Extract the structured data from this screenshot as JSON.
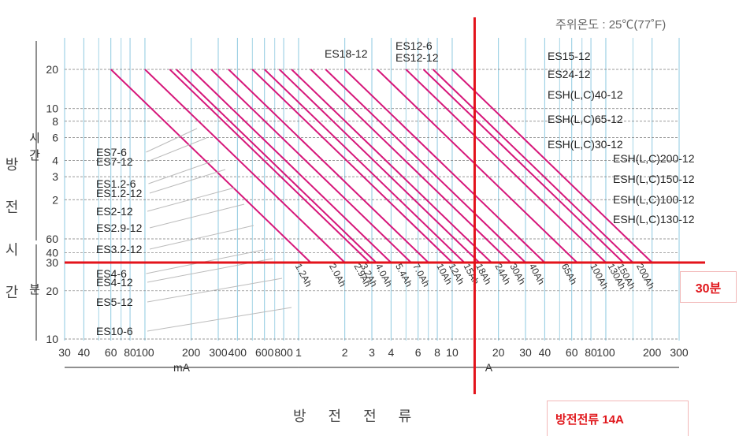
{
  "chart_data": {
    "type": "line",
    "annotation_ambient": "주위온도 : 25℃(77˚F)",
    "ylabel": "방전시간",
    "xlabel": "방전전류",
    "x_scale": "log",
    "x_unit_segments": [
      {
        "label": "mA",
        "from": 30,
        "to": 1000,
        "unit": "mA"
      },
      {
        "label": "A",
        "from": 1,
        "to": 300,
        "unit": "A"
      }
    ],
    "x_ticks_mA": [
      "30",
      "40",
      "60",
      "80",
      "100",
      "200",
      "300",
      "400",
      "600",
      "800"
    ],
    "x_ticks_A": [
      "1",
      "2",
      "3",
      "4",
      "6",
      "8",
      "10",
      "20",
      "30",
      "40",
      "60",
      "80",
      "100",
      "200",
      "300"
    ],
    "y_axis_groups": [
      {
        "label": "시간",
        "unit": "h",
        "ticks": [
          "20",
          "10",
          "8",
          "6",
          "4",
          "3",
          "2"
        ]
      },
      {
        "label": "분",
        "unit": "min",
        "ticks": [
          "60",
          "40",
          "30",
          "20",
          "10"
        ]
      }
    ],
    "grid": true,
    "series": [
      {
        "name": "1.2Ah",
        "points": [
          {
            "x_A": 0.06,
            "t_h": 20
          },
          {
            "x_A": 1.2,
            "t_h": 0.5
          }
        ]
      },
      {
        "name": "2.0Ah",
        "points": [
          {
            "x_A": 0.1,
            "t_h": 20
          },
          {
            "x_A": 2.0,
            "t_h": 0.5
          }
        ]
      },
      {
        "name": "2.9Ah",
        "points": [
          {
            "x_A": 0.145,
            "t_h": 20
          },
          {
            "x_A": 2.9,
            "t_h": 0.5
          }
        ]
      },
      {
        "name": "3.2Ah",
        "points": [
          {
            "x_A": 0.16,
            "t_h": 20
          },
          {
            "x_A": 3.2,
            "t_h": 0.5
          }
        ]
      },
      {
        "name": "4.0Ah",
        "points": [
          {
            "x_A": 0.2,
            "t_h": 20
          },
          {
            "x_A": 4.0,
            "t_h": 0.5
          }
        ]
      },
      {
        "name": "5.4Ah",
        "points": [
          {
            "x_A": 0.27,
            "t_h": 20
          },
          {
            "x_A": 5.4,
            "t_h": 0.5
          }
        ]
      },
      {
        "name": "7.0Ah",
        "points": [
          {
            "x_A": 0.35,
            "t_h": 20
          },
          {
            "x_A": 7.0,
            "t_h": 0.5
          }
        ]
      },
      {
        "name": "10Ah",
        "points": [
          {
            "x_A": 0.5,
            "t_h": 20
          },
          {
            "x_A": 10,
            "t_h": 0.5
          }
        ]
      },
      {
        "name": "12Ah",
        "points": [
          {
            "x_A": 0.6,
            "t_h": 20
          },
          {
            "x_A": 12,
            "t_h": 0.5
          }
        ]
      },
      {
        "name": "15Ah",
        "points": [
          {
            "x_A": 0.75,
            "t_h": 20
          },
          {
            "x_A": 15,
            "t_h": 0.5
          }
        ]
      },
      {
        "name": "18Ah",
        "points": [
          {
            "x_A": 0.9,
            "t_h": 20
          },
          {
            "x_A": 18,
            "t_h": 0.5
          }
        ]
      },
      {
        "name": "24Ah",
        "points": [
          {
            "x_A": 1.2,
            "t_h": 20
          },
          {
            "x_A": 24,
            "t_h": 0.5
          }
        ]
      },
      {
        "name": "30Ah",
        "points": [
          {
            "x_A": 1.5,
            "t_h": 20
          },
          {
            "x_A": 30,
            "t_h": 0.5
          }
        ]
      },
      {
        "name": "40Ah",
        "points": [
          {
            "x_A": 2.0,
            "t_h": 20
          },
          {
            "x_A": 40,
            "t_h": 0.5
          }
        ]
      },
      {
        "name": "65Ah",
        "points": [
          {
            "x_A": 3.25,
            "t_h": 20
          },
          {
            "x_A": 65,
            "t_h": 0.5
          }
        ]
      },
      {
        "name": "100Ah",
        "points": [
          {
            "x_A": 5,
            "t_h": 20
          },
          {
            "x_A": 100,
            "t_h": 0.5
          }
        ]
      },
      {
        "name": "130Ah",
        "points": [
          {
            "x_A": 6.5,
            "t_h": 20
          },
          {
            "x_A": 130,
            "t_h": 0.5
          }
        ]
      },
      {
        "name": "150Ah",
        "points": [
          {
            "x_A": 7.5,
            "t_h": 20
          },
          {
            "x_A": 150,
            "t_h": 0.5
          }
        ]
      },
      {
        "name": "200Ah",
        "points": [
          {
            "x_A": 10,
            "t_h": 20
          },
          {
            "x_A": 200,
            "t_h": 0.5
          }
        ]
      }
    ],
    "model_labels_left": [
      "ES7-6",
      "ES7-12",
      "ES1.2-6",
      "ES1.2-12",
      "ES2-12",
      "ES2.9-12",
      "ES3.2-12",
      "ES4-6",
      "ES4-12",
      "ES5-12",
      "ES10-6"
    ],
    "model_labels_top": [
      "ES18-12",
      "ES12-6",
      "ES12-12"
    ],
    "model_labels_right": [
      "ES15-12",
      "ES24-12",
      "ESH(L,C)40-12",
      "ESH(L,C)65-12",
      "ESH(L,C)30-12",
      "ESH(L,C)200-12",
      "ESH(L,C)150-12",
      "ESH(L,C)100-12",
      "ESH(L,C)130-12"
    ],
    "reference_lines": [
      {
        "axis": "y",
        "value_min": 30,
        "label": "30분"
      },
      {
        "axis": "x",
        "value_A": 14,
        "label": "방전전류 14A"
      }
    ],
    "colors": {
      "curve": "#d6177a",
      "grid_solid": "#8ec9e0",
      "grid_dash": "#777777",
      "reference": "#e3131b",
      "leader": "#bbbbbb",
      "text": "#333333"
    }
  }
}
